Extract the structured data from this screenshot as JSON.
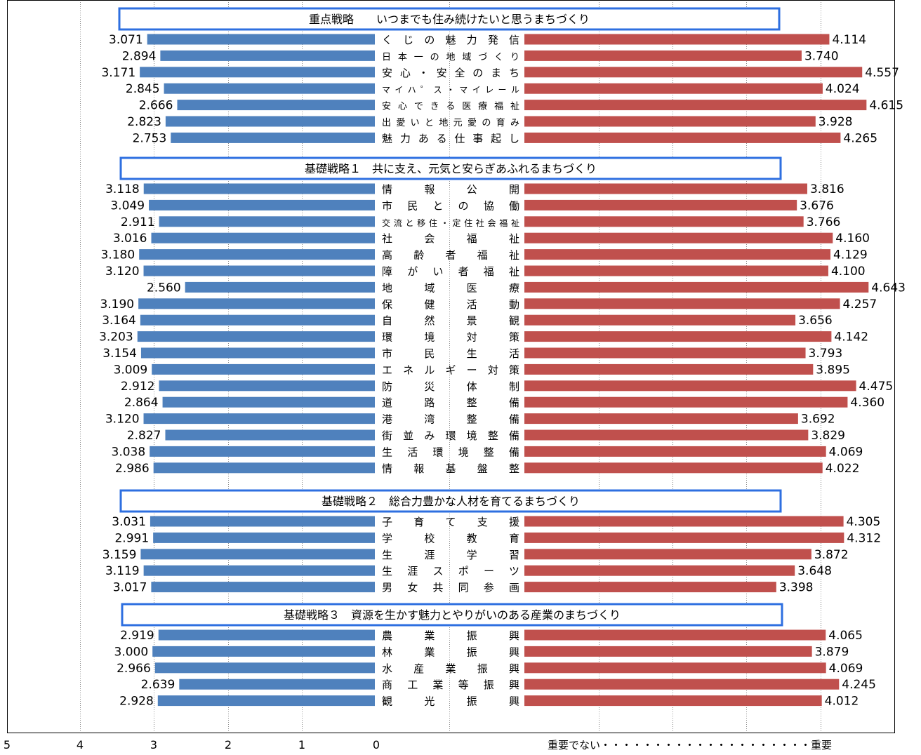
{
  "chart_data": {
    "type": "bar",
    "colors": {
      "left": "#4f81bd",
      "right": "#c0504d",
      "section_border": "#2e6fe0",
      "grid": "#8c8c8c"
    },
    "left_axis_ticks": [
      "5",
      "4",
      "3",
      "2",
      "1",
      "0"
    ],
    "right_axis_note": "重要でない・・・・・・・・・・・・・・・・・・・・重要",
    "sections": [
      {
        "title": "重点戦略　　いつまでも住み続けたいと思うまちづくり",
        "rows": [
          {
            "label": "くじの魅力発信",
            "left": "3.071",
            "right": "4.114"
          },
          {
            "label": "日本一の地域づくり",
            "left": "2.894",
            "right": "3.740"
          },
          {
            "label": "安心・安全のまち",
            "left": "3.171",
            "right": "4.557"
          },
          {
            "label": "マイハ゜ス・マイレール",
            "left": "2.845",
            "right": "4.024"
          },
          {
            "label": "安心できる医療福祉",
            "left": "2.666",
            "right": "4.615"
          },
          {
            "label": "出愛いと地元愛の育み",
            "left": "2.823",
            "right": "3.928"
          },
          {
            "label": "魅力ある仕事起し",
            "left": "2.753",
            "right": "4.265"
          }
        ]
      },
      {
        "title": "基礎戦略１　共に支え、元気と安らぎあふれるまちづくり",
        "rows": [
          {
            "label": "情報公開",
            "left": "3.118",
            "right": "3.816"
          },
          {
            "label": "市民との協働",
            "left": "3.049",
            "right": "3.676"
          },
          {
            "label": "交流と移住・定住社会福祉",
            "left": "2.911",
            "right": "3.766"
          },
          {
            "label": "社会福祉",
            "left": "3.016",
            "right": "4.160"
          },
          {
            "label": "高齢者福祉",
            "left": "3.180",
            "right": "4.129"
          },
          {
            "label": "障がい者福祉",
            "left": "3.120",
            "right": "4.100"
          },
          {
            "label": "地域医療",
            "left": "2.560",
            "right": "4.643"
          },
          {
            "label": "保健活動",
            "left": "3.190",
            "right": "4.257"
          },
          {
            "label": "自然景観",
            "left": "3.164",
            "right": "3.656"
          },
          {
            "label": "環境対策",
            "left": "3.203",
            "right": "4.142"
          },
          {
            "label": "市民生活",
            "left": "3.154",
            "right": "3.793"
          },
          {
            "label": "エネルギー対策",
            "left": "3.009",
            "right": "3.895"
          },
          {
            "label": "防災体制",
            "left": "2.912",
            "right": "4.475"
          },
          {
            "label": "道路整備",
            "left": "2.864",
            "right": "4.360"
          },
          {
            "label": "港湾整備",
            "left": "3.120",
            "right": "3.692"
          },
          {
            "label": "街並み環境整備",
            "left": "2.827",
            "right": "3.829"
          },
          {
            "label": "生活環境整備",
            "left": "3.038",
            "right": "4.069"
          },
          {
            "label": "情報基盤整",
            "left": "2.986",
            "right": "4.022"
          }
        ]
      },
      {
        "title": "基礎戦略２　総合力豊かな人材を育てるまちづくり",
        "rows": [
          {
            "label": "子育て支援",
            "left": "3.031",
            "right": "4.305"
          },
          {
            "label": "学校教育",
            "left": "2.991",
            "right": "4.312"
          },
          {
            "label": "生涯学習",
            "left": "3.159",
            "right": "3.872"
          },
          {
            "label": "生涯スポーツ",
            "left": "3.119",
            "right": "3.648"
          },
          {
            "label": "男女共同参画",
            "left": "3.017",
            "right": "3.398"
          }
        ]
      },
      {
        "title": "基礎戦略３　資源を生かす魅力とやりがいのある産業のまちづくり",
        "rows": [
          {
            "label": "農業振興",
            "left": "2.919",
            "right": "4.065"
          },
          {
            "label": "林業振興",
            "left": "3.000",
            "right": "3.879"
          },
          {
            "label": "水産業振興",
            "left": "2.966",
            "right": "4.069"
          },
          {
            "label": "商工業等振興",
            "left": "2.639",
            "right": "4.245"
          },
          {
            "label": "観光振興",
            "left": "2.928",
            "right": "4.012"
          }
        ]
      }
    ]
  }
}
